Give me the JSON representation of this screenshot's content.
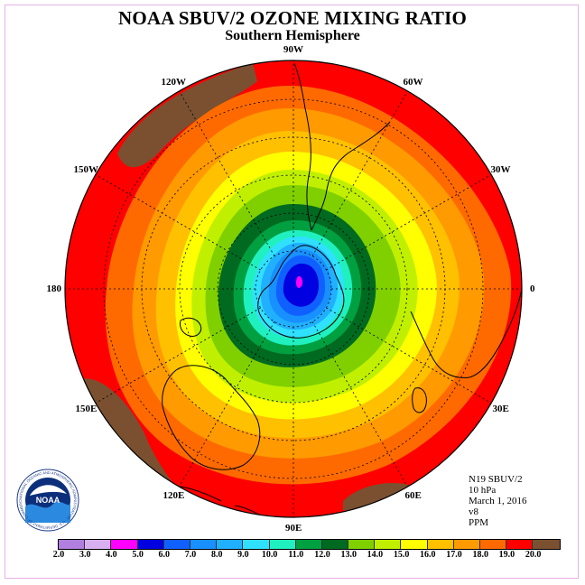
{
  "title": "NOAA SBUV/2 OZONE MIXING RATIO",
  "subtitle": "Southern Hemisphere",
  "longitude_labels": [
    {
      "text": "90W",
      "lon": -90
    },
    {
      "text": "60W",
      "lon": -60
    },
    {
      "text": "30W",
      "lon": -30
    },
    {
      "text": "0",
      "lon": 0
    },
    {
      "text": "30E",
      "lon": 30
    },
    {
      "text": "60E",
      "lon": 60
    },
    {
      "text": "90E",
      "lon": 90
    },
    {
      "text": "120E",
      "lon": 120
    },
    {
      "text": "150E",
      "lon": 150
    },
    {
      "text": "180",
      "lon": 180
    },
    {
      "text": "150W",
      "lon": -150
    },
    {
      "text": "120W",
      "lon": -120
    }
  ],
  "info": {
    "satellite": "N19 SBUV/2",
    "pressure": "10 hPa",
    "date": "March 1, 2016",
    "version": "v8",
    "units": "PPM"
  },
  "logo": {
    "text": "NOAA",
    "ring_text": "NATIONAL OCEANIC AND ATMOSPHERIC ADMINISTRATION · U.S. DEPARTMENT OF COMMERCE"
  },
  "colorbar": {
    "labels": [
      "2.0",
      "3.0",
      "4.0",
      "5.0",
      "6.0",
      "7.0",
      "8.0",
      "9.0",
      "10.0",
      "11.0",
      "12.0",
      "13.0",
      "14.0",
      "15.0",
      "16.0",
      "17.0",
      "18.0",
      "19.0",
      "20.0"
    ],
    "colors": [
      "#b07fe0",
      "#d8b0f0",
      "#ff00ff",
      "#0000e0",
      "#1060ff",
      "#1890ff",
      "#20b0ff",
      "#30e0ff",
      "#20f0c0",
      "#00a040",
      "#006a20",
      "#80d000",
      "#c0f000",
      "#ffff00",
      "#ffc000",
      "#ff9a00",
      "#ff6a00",
      "#ff0000",
      "#7a5030"
    ]
  },
  "field": {
    "center_value": "5.0",
    "outer_value": "19.0",
    "high_region_color": "#7a5030"
  }
}
